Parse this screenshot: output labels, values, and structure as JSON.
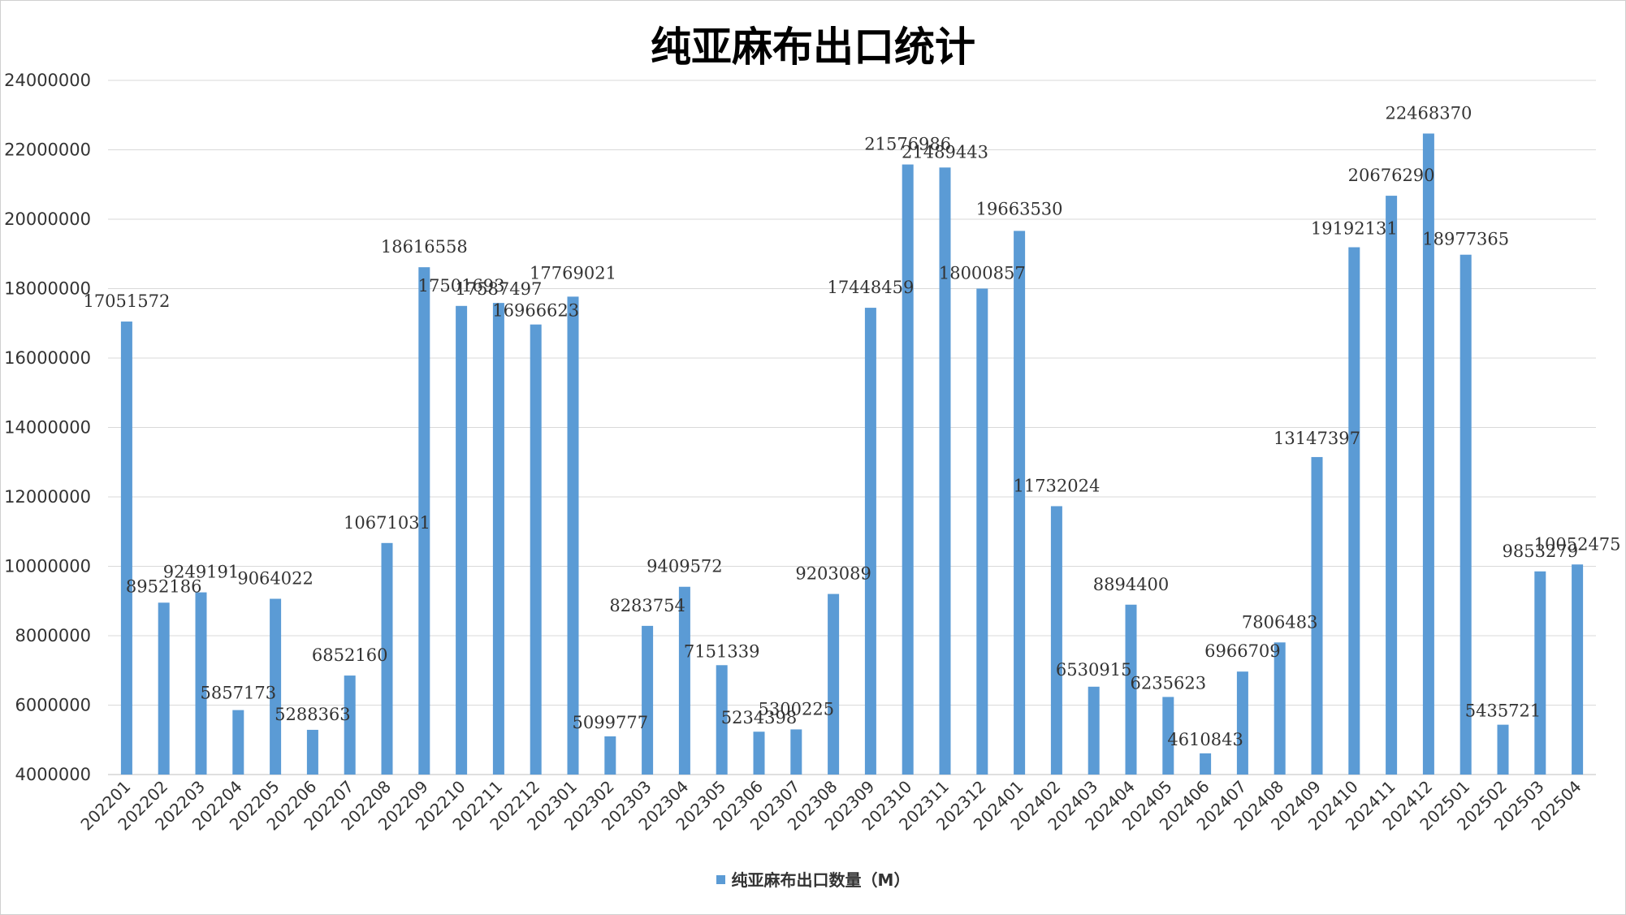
{
  "chart_data": {
    "type": "bar",
    "title": "纯亚麻布出口统计",
    "legend": {
      "position": "bottom",
      "label": "纯亚麻布出口数量（M）"
    },
    "color": "#5b9bd5",
    "grid": true,
    "ylim": [
      4000000,
      24000000
    ],
    "ytick_step": 2000000,
    "yticks": [
      "4000000",
      "6000000",
      "8000000",
      "10000000",
      "12000000",
      "14000000",
      "16000000",
      "18000000",
      "20000000",
      "22000000",
      "24000000"
    ],
    "categories": [
      "202201",
      "202202",
      "202203",
      "202204",
      "202205",
      "202206",
      "202207",
      "202208",
      "202209",
      "202210",
      "202211",
      "202212",
      "202301",
      "202302",
      "202303",
      "202304",
      "202305",
      "202306",
      "202307",
      "202308",
      "202309",
      "202310",
      "202311",
      "202312",
      "202401",
      "202402",
      "202403",
      "202404",
      "202405",
      "202406",
      "202407",
      "202408",
      "202409",
      "202410",
      "202411",
      "202412",
      "202501",
      "202502",
      "202503",
      "202504"
    ],
    "series": [
      {
        "name": "纯亚麻布出口数量（M）",
        "values": [
          17051572,
          8952186,
          9249191,
          5857173,
          9064022,
          5288363,
          6852160,
          10671031,
          18616558,
          17501693,
          17587497,
          16966623,
          17769021,
          5099777,
          8283754,
          9409572,
          7151339,
          5234398,
          5300225,
          9203089,
          17448459,
          21576986,
          21489443,
          18000857,
          19663530,
          11732024,
          6530915,
          8894400,
          6235623,
          4610843,
          6966709,
          7806483,
          13147397,
          19192131,
          20676290,
          22468370,
          18977365,
          5435721,
          9853279,
          10052475
        ]
      }
    ]
  }
}
